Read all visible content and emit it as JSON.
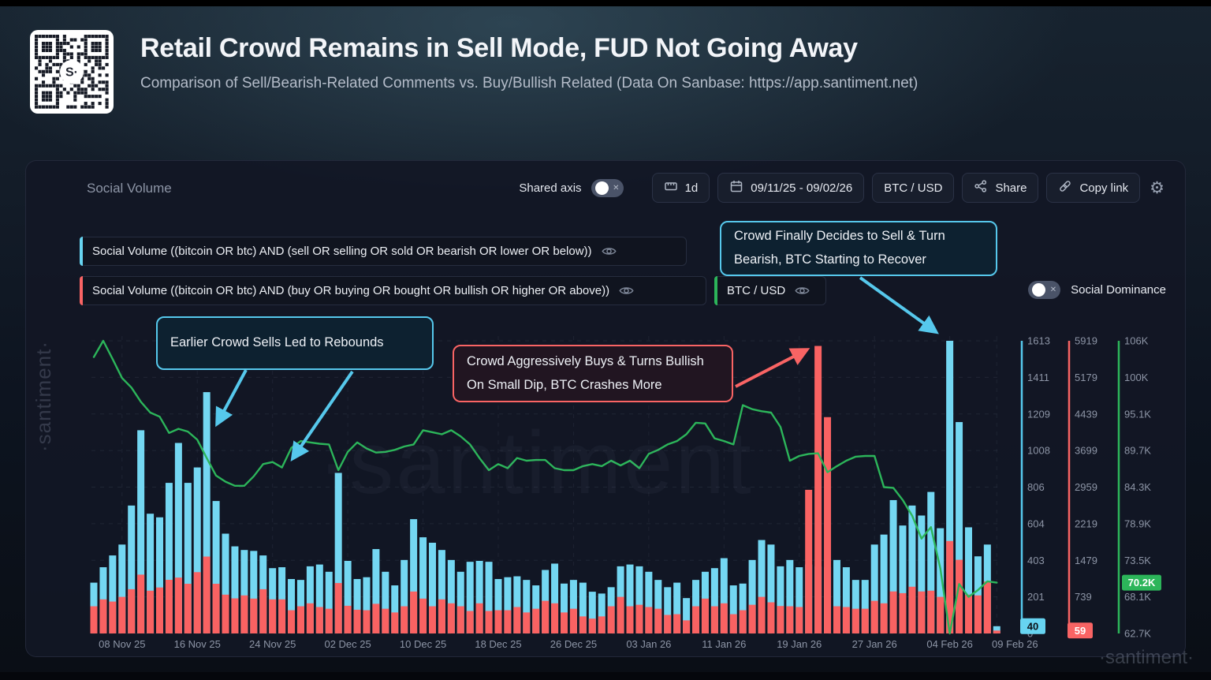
{
  "page": {
    "title": "Retail Crowd Remains in Sell Mode, FUD Not Going Away",
    "subtitle": "Comparison of Sell/Bearish-Related Comments vs. Buy/Bullish Related (Data On Sanbase: https://app.santiment.net)"
  },
  "panel": {
    "header": "Social Volume",
    "toolbar": {
      "shared_axis_label": "Shared axis",
      "shared_axis_state": "off",
      "interval_label": "1d",
      "date_range": "09/11/25 - 09/02/26",
      "pair_label": "BTC / USD",
      "share_label": "Share",
      "copy_link_label": "Copy link",
      "gear_icon": "gear-icon"
    },
    "legend": [
      {
        "label": "Social Volume ((bitcoin OR btc) AND (sell OR selling OR sold OR bearish OR lower OR below))",
        "color": "#67d4f1"
      },
      {
        "label": "Social Volume ((bitcoin OR btc) AND (buy OR buying OR bought OR bullish OR higher OR above))",
        "color": "#f96464"
      },
      {
        "label": "BTC / USD",
        "color": "#2cb55a"
      }
    ],
    "social_dominance_label": "Social Dominance",
    "social_dominance_state": "off"
  },
  "annotations": [
    {
      "text": "Earlier Crowd Sells Led to Rebounds",
      "color": "#56c8ec"
    },
    {
      "text": "Crowd Aggressively Buys & Turns Bullish On Small Dip, BTC Crashes More",
      "color": "#f96464"
    },
    {
      "text": "Crowd Finally Decides to Sell & Turn Bearish, BTC Starting to Recover",
      "color": "#56c8ec"
    }
  ],
  "watermarks": {
    "left": "·santiment·",
    "center": "·santiment",
    "corner": "·santiment·"
  },
  "chart_data": {
    "type": "bar",
    "title": "Social Volume",
    "subtype": "two overlaid bar series + price line, separate y-axes",
    "x_labels": [
      "08 Nov 25",
      "16 Nov 25",
      "24 Nov 25",
      "02 Dec 25",
      "10 Dec 25",
      "18 Dec 25",
      "26 Dec 25",
      "03 Jan 26",
      "11 Jan 26",
      "19 Jan 26",
      "27 Jan 26",
      "04 Feb 26",
      "09 Feb 26"
    ],
    "label_indices": [
      3,
      11,
      19,
      27,
      35,
      43,
      51,
      59,
      67,
      75,
      83,
      91,
      96
    ],
    "colors": {
      "sell": "#74d7f2",
      "buy": "#f96262",
      "btc": "#2cb55a"
    },
    "sell_axis_ticks": [
      "1613",
      "1411",
      "1209",
      "1008",
      "806",
      "604",
      "403",
      "201",
      "0"
    ],
    "buy_axis_ticks": [
      "5919",
      "5179",
      "4439",
      "3699",
      "2959",
      "2219",
      "1479",
      "739"
    ],
    "btc_axis_ticks": [
      "106K",
      "100K",
      "95.1K",
      "89.7K",
      "84.3K",
      "78.9K",
      "73.5K",
      "68.1K",
      "62.7K"
    ],
    "sell_axis_max": 1613,
    "buy_axis_max": 5919,
    "btc_axis_min_k": 62.7,
    "btc_axis_max_k": 105.9,
    "last_values": {
      "sell": "40",
      "buy": "59",
      "btc": "70.2K"
    },
    "series": [
      {
        "name": "Social Volume sell/bearish",
        "type": "bar",
        "values": [
          280,
          365,
          430,
          490,
          705,
          1120,
          660,
          640,
          830,
          1050,
          830,
          915,
          1330,
          730,
          550,
          480,
          460,
          455,
          430,
          360,
          365,
          300,
          295,
          370,
          380,
          340,
          885,
          400,
          300,
          310,
          465,
          340,
          265,
          405,
          630,
          530,
          500,
          460,
          405,
          340,
          395,
          400,
          395,
          300,
          310,
          315,
          295,
          265,
          350,
          385,
          275,
          295,
          280,
          230,
          220,
          255,
          370,
          380,
          370,
          340,
          295,
          255,
          280,
          195,
          295,
          340,
          360,
          415,
          265,
          275,
          405,
          515,
          490,
          370,
          405,
          365,
          380,
          370,
          365,
          405,
          365,
          295,
          295,
          490,
          545,
          735,
          595,
          705,
          650,
          780,
          580,
          1613,
          1165,
          585,
          425,
          490,
          40
        ]
      },
      {
        "name": "Social Volume buy/bullish",
        "type": "bar",
        "values": [
          550,
          690,
          645,
          740,
          895,
          1190,
          865,
          930,
          1085,
          1130,
          1005,
          1240,
          1555,
          1005,
          785,
          710,
          770,
          705,
          895,
          690,
          690,
          470,
          550,
          610,
          535,
          500,
          1020,
          560,
          480,
          470,
          600,
          500,
          425,
          550,
          848,
          705,
          550,
          690,
          610,
          550,
          455,
          610,
          455,
          470,
          470,
          535,
          425,
          500,
          660,
          610,
          425,
          500,
          345,
          300,
          345,
          550,
          740,
          550,
          580,
          535,
          500,
          375,
          390,
          265,
          550,
          705,
          550,
          610,
          390,
          470,
          580,
          740,
          630,
          555,
          550,
          535,
          2905,
          5815,
          4375,
          550,
          535,
          500,
          500,
          660,
          610,
          850,
          815,
          945,
          850,
          865,
          740,
          1870,
          1490,
          785,
          770,
          1050,
          59
        ]
      },
      {
        "name": "BTC / USD",
        "type": "line",
        "values_k": [
          103.5,
          105.9,
          103.2,
          100.4,
          99.0,
          96.9,
          95.3,
          94.7,
          92.3,
          92.9,
          92.5,
          91.3,
          88.6,
          86.0,
          85.1,
          84.5,
          84.5,
          85.9,
          87.7,
          88.0,
          87.2,
          90.1,
          91.1,
          90.9,
          90.7,
          90.6,
          86.8,
          89.5,
          90.9,
          90.0,
          89.4,
          89.5,
          89.8,
          90.3,
          90.6,
          92.7,
          92.4,
          92.1,
          92.7,
          91.8,
          90.6,
          88.6,
          86.8,
          87.7,
          87.1,
          88.6,
          88.2,
          88.3,
          88.3,
          87.1,
          86.8,
          86.8,
          87.4,
          87.7,
          87.4,
          88.2,
          87.5,
          88.2,
          87.1,
          89.2,
          89.8,
          90.6,
          91.1,
          92.1,
          93.8,
          93.7,
          91.5,
          91.1,
          90.6,
          96.4,
          95.8,
          95.5,
          95.3,
          93.2,
          88.2,
          88.9,
          89.2,
          89.3,
          86.5,
          87.4,
          88.2,
          88.8,
          88.9,
          88.9,
          84.3,
          84.2,
          82.4,
          80.1,
          76.7,
          78.4,
          72.3,
          62.7,
          70.0,
          68.1,
          69.1,
          70.4,
          70.2
        ]
      }
    ],
    "legend_position": "top-left",
    "grid": "dashed"
  }
}
